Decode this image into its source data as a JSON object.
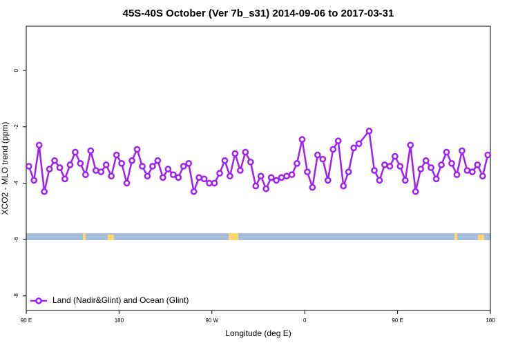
{
  "chart_data": {
    "type": "line",
    "title": "45S-40S October (Ver 7b_s31)   2014-09-06 to 2017-03-31",
    "xlabel": "Longitude (deg E)",
    "ylabel": "XCO2 - MLO trend (ppm)",
    "xlim": [
      90,
      540
    ],
    "ylim": [
      -8.52,
      1.57
    ],
    "xticks": [
      {
        "value": 90,
        "label": "90 E"
      },
      180,
      {
        "value": 270,
        "label": "90 W"
      },
      {
        "value": 360,
        "label": "0"
      },
      {
        "value": 450,
        "label": "90 E"
      },
      {
        "value": 540,
        "label": "180"
      }
    ],
    "yticks": [
      0,
      -2,
      -4,
      -6,
      -8
    ],
    "legend": "bottom-left",
    "x": [
      92.5,
      97.5,
      102.5,
      107.5,
      112.5,
      117.5,
      122.5,
      127.5,
      132.5,
      137.5,
      142.5,
      147.5,
      152.5,
      157.5,
      162.5,
      167.5,
      172.5,
      177.5,
      182.5,
      187.5,
      192.5,
      197.5,
      202.5,
      207.5,
      212.5,
      217.5,
      222.5,
      227.5,
      232.5,
      237.5,
      242.5,
      247.5,
      252.5,
      257.5,
      262.5,
      267.5,
      272.5,
      277.5,
      282.5,
      287.5,
      292.5,
      297.5,
      302.5,
      307.5,
      312.5,
      317.5,
      322.5,
      327.5,
      332.5,
      337.5,
      342.5,
      347.5,
      352.5,
      357.5,
      362.5,
      367.5,
      372.5,
      377.5,
      382.5,
      387.5,
      392.5,
      397.5,
      402.5,
      407.5,
      412.5,
      422.5,
      427.5,
      432.5,
      437.5,
      442.5,
      447.5,
      452.5,
      457.5,
      462.5,
      467.5,
      472.5,
      477.5,
      482.5,
      487.5,
      492.5,
      497.5,
      502.5,
      507.5,
      512.5,
      517.5,
      522.5,
      527.5,
      532.5,
      537.5
    ],
    "series": [
      {
        "name": "Land (Nadir&Glint) and Ocean (Glint)",
        "color": "#a020f0",
        "values": [
          -3.4,
          -3.9,
          -2.65,
          -4.3,
          -3.5,
          -3.2,
          -3.45,
          -3.85,
          -3.35,
          -2.9,
          -3.3,
          -3.7,
          -2.85,
          -3.55,
          -3.6,
          -3.35,
          -3.75,
          -3.0,
          -3.3,
          -4.0,
          -3.2,
          -2.8,
          -3.4,
          -3.75,
          -3.4,
          -3.2,
          -3.8,
          -3.5,
          -3.7,
          -3.8,
          -3.4,
          -3.3,
          -4.3,
          -3.8,
          -3.85,
          -4.0,
          -4.0,
          -3.65,
          -3.2,
          -3.75,
          -2.95,
          -3.55,
          -2.9,
          -3.25,
          -4.1,
          -3.75,
          -4.2,
          -3.8,
          -3.9,
          -3.8,
          -3.75,
          -3.7,
          -3.3,
          -2.45,
          -3.6,
          -4.15,
          -3.0,
          -3.15,
          -3.9,
          -2.8,
          -2.5,
          -4.1,
          -3.6,
          -2.75,
          -2.6,
          -2.15,
          -3.55,
          -3.9,
          -3.35,
          -3.4,
          -3.05,
          -3.4,
          -3.9,
          -2.65,
          -4.3,
          -3.5,
          -3.2,
          -3.45,
          -3.85,
          -3.35,
          -2.9,
          -3.3,
          -3.7,
          -2.85,
          -3.55,
          -3.6,
          -3.35,
          -3.75,
          -3.0
        ]
      }
    ]
  }
}
